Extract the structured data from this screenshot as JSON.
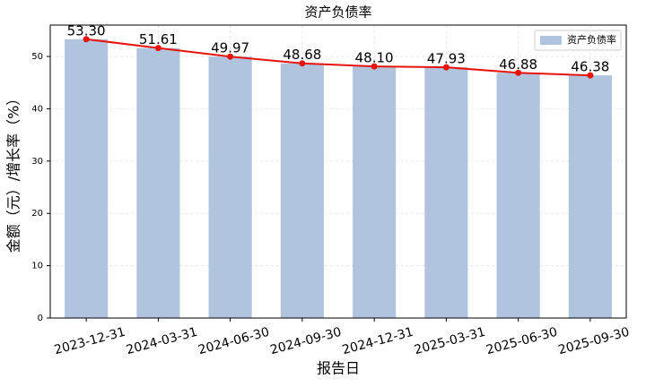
{
  "chart_data": {
    "type": "bar",
    "title": "资产负债率",
    "x_label": "报告日",
    "y_label": "金额（元）/增长率（%）",
    "categories": [
      "2023-12-31",
      "2024-03-31",
      "2024-06-30",
      "2024-09-30",
      "2024-12-31",
      "2025-03-31",
      "2025-06-30",
      "2025-09-30"
    ],
    "series": [
      {
        "name": "资产负债率",
        "color": "#b0c4de",
        "values": [
          53.3,
          51.61,
          49.97,
          48.68,
          48.1,
          47.93,
          46.88,
          46.38
        ],
        "value_labels": [
          "53.30",
          "51.61",
          "49.97",
          "48.68",
          "48.10",
          "47.93",
          "46.88",
          "46.38"
        ]
      }
    ],
    "line_color": "#e8140c",
    "ylim": [
      0,
      56
    ],
    "yticks": [
      0,
      10,
      20,
      30,
      40,
      50
    ],
    "grid": true,
    "legend": "upper right"
  }
}
